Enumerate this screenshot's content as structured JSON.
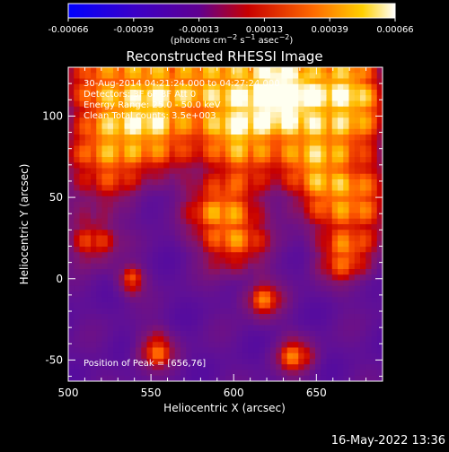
{
  "chart_data": {
    "type": "heatmap",
    "title": "Reconstructed RHESSI Image",
    "colorbar": {
      "ticks": [
        "-0.00066",
        "-0.00039",
        "-0.00013",
        "0.00013",
        "0.00039",
        "0.00066"
      ],
      "range": [
        -0.00066,
        0.00066
      ],
      "colormap": [
        "#0000ff",
        "#3a00c8",
        "#600090",
        "#c80000",
        "#ff6a00",
        "#ffffff"
      ]
    },
    "xlabel": "Heliocentric X (arcsec)",
    "ylabel": "Heliocentric Y (arcsec)",
    "x_ticks": [
      "500",
      "550",
      "600",
      "650"
    ],
    "y_ticks": [
      "100",
      "50",
      "0",
      "-50"
    ],
    "xlim": [
      500,
      690
    ],
    "ylim": [
      -63,
      130
    ],
    "annotations": [
      "30-Aug-2014 04:21:24.000 to 04:27:24.000",
      "Detectors: 3F 6F 8F  Att 0",
      "Energy Range: 25.0 - 50.0 keV",
      "Clean     Total counts: 3.5e+003"
    ],
    "peak_label": "Position of Peak = [656,76]",
    "timestamp": "16-May-2022 13:36"
  }
}
